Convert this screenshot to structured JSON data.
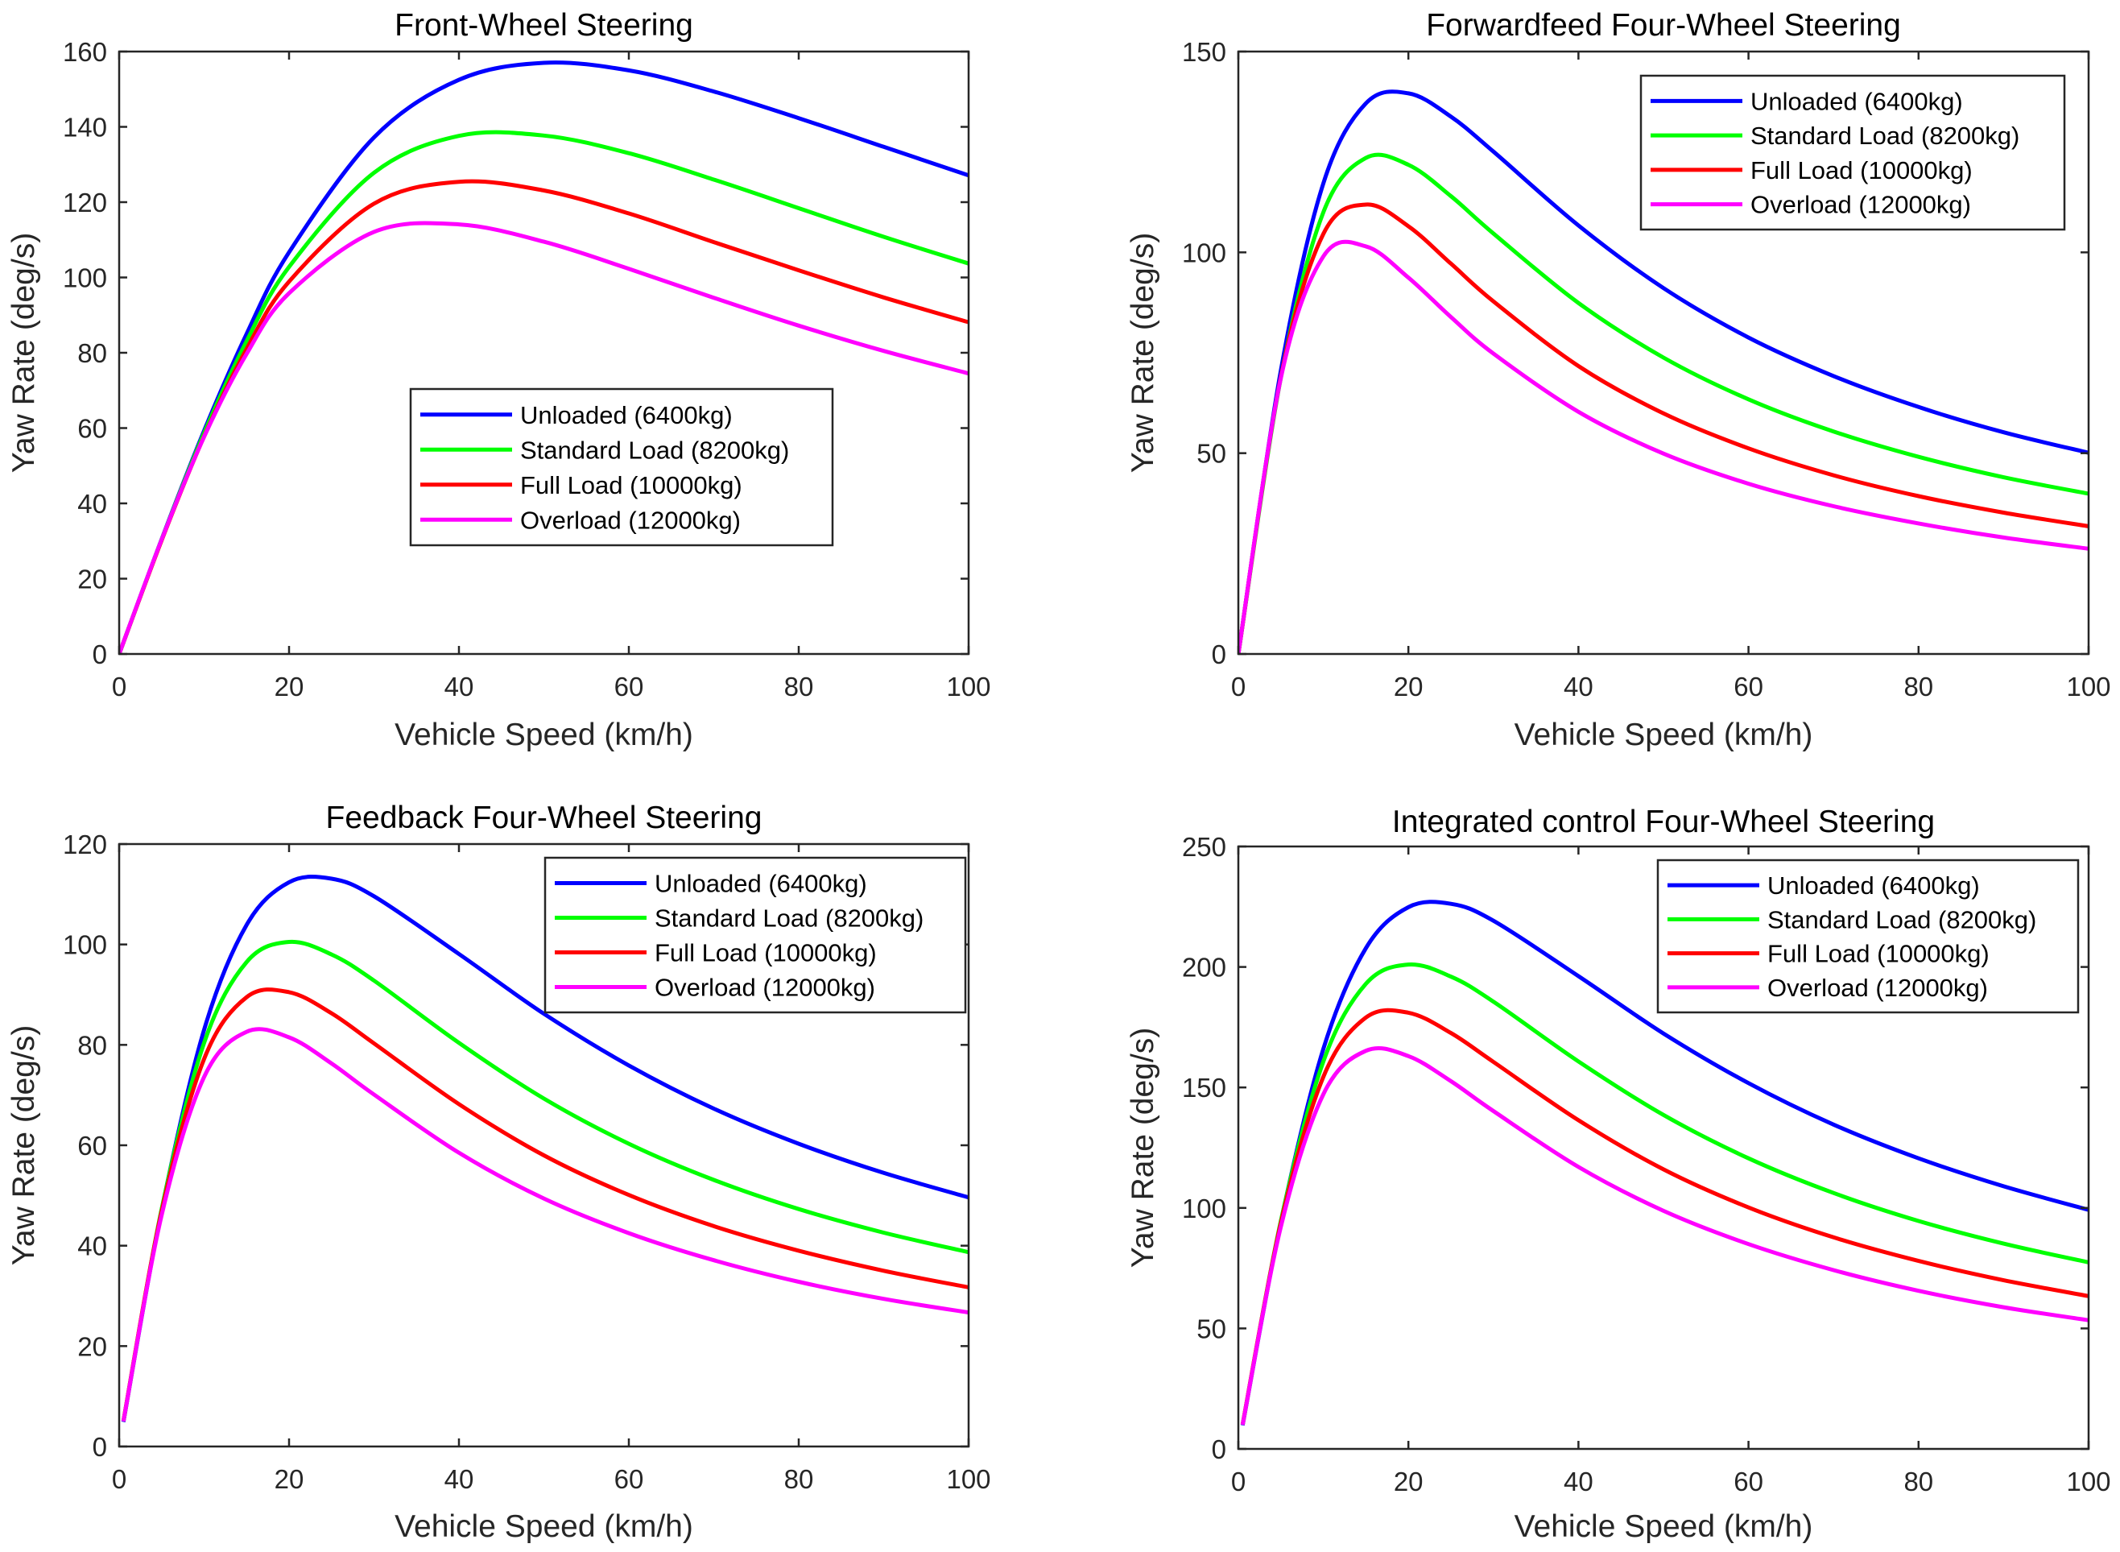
{
  "chart_data": [
    {
      "type": "line",
      "title": "Front-Wheel Steering",
      "xlabel": "Vehicle Speed (km/h)",
      "ylabel": "Yaw Rate (deg/s)",
      "xlim": [
        0,
        100
      ],
      "ylim": [
        0,
        160
      ],
      "xticks": [
        0,
        20,
        40,
        60,
        80,
        100
      ],
      "yticks": [
        0,
        20,
        40,
        60,
        80,
        100,
        120,
        140,
        160
      ],
      "grid": false,
      "legend_position": "center-right",
      "x": [
        0,
        5,
        10,
        15,
        20,
        30,
        40,
        50,
        60,
        70,
        80,
        90,
        100
      ],
      "series": [
        {
          "name": "Unloaded (6400kg)",
          "color": "#0000ff",
          "values": [
            0,
            30.5,
            59.3,
            85.0,
            106.7,
            137.2,
            152.5,
            157.0,
            155.0,
            149.4,
            142.3,
            134.7,
            127.1
          ]
        },
        {
          "name": "Standard Load (8200kg)",
          "color": "#00ff00",
          "values": [
            0,
            30.4,
            58.7,
            83.1,
            102.8,
            127.8,
            137.6,
            137.7,
            133.0,
            126.0,
            118.4,
            110.8,
            103.7
          ]
        },
        {
          "name": "Full Load (10000kg)",
          "color": "#ff0000",
          "values": [
            0,
            30.2,
            57.8,
            81.0,
            98.9,
            119.6,
            125.4,
            123.1,
            117.0,
            109.4,
            101.9,
            94.7,
            88.1
          ]
        },
        {
          "name": "Overload (12000kg)",
          "color": "#ff00ff",
          "values": [
            0,
            30.4,
            57.7,
            79.7,
            95.8,
            112.1,
            114.1,
            109.5,
            102.3,
            94.6,
            87.2,
            80.5,
            74.5
          ]
        }
      ]
    },
    {
      "type": "line",
      "title": "Forwardfeed Four-Wheel Steering",
      "xlabel": "Vehicle Speed (km/h)",
      "ylabel": "Yaw Rate (deg/s)",
      "xlim": [
        0,
        100
      ],
      "ylim": [
        0,
        150
      ],
      "xticks": [
        0,
        20,
        40,
        60,
        80,
        100
      ],
      "yticks": [
        0,
        50,
        100,
        150
      ],
      "grid": false,
      "legend_position": "top-right",
      "x": [
        0,
        5,
        10,
        15,
        20,
        25,
        30,
        40,
        50,
        60,
        70,
        80,
        90,
        100
      ],
      "series": [
        {
          "name": "Unloaded (6400kg)",
          "color": "#0000ff",
          "values": [
            0,
            70.6,
            117.2,
            137.1,
            139.6,
            133.8,
            125.1,
            106.7,
            91.1,
            78.8,
            69.2,
            61.5,
            55.2,
            50.1
          ]
        },
        {
          "name": "Standard Load (8200kg)",
          "color": "#00ff00",
          "values": [
            0,
            68.8,
            110.0,
            123.5,
            121.8,
            114.0,
            104.7,
            87.4,
            73.8,
            63.4,
            55.4,
            49.1,
            44.0,
            39.9
          ]
        },
        {
          "name": "Full Load (10000kg)",
          "color": "#ff0000",
          "values": [
            0,
            69.0,
            104.6,
            111.9,
            106.5,
            97.2,
            87.8,
            71.7,
            59.9,
            51.2,
            44.5,
            39.3,
            35.2,
            31.8
          ]
        },
        {
          "name": "Overload (12000kg)",
          "color": "#ff00ff",
          "values": [
            0,
            68.7,
            99.0,
            101.5,
            93.7,
            83.9,
            74.8,
            60.3,
            49.9,
            42.4,
            36.8,
            32.5,
            29.0,
            26.2
          ]
        }
      ]
    },
    {
      "type": "line",
      "title": "Feedback Four-Wheel Steering",
      "xlabel": "Vehicle Speed (km/h)",
      "ylabel": "Yaw Rate (deg/s)",
      "xlim": [
        0,
        100
      ],
      "ylim": [
        0,
        120
      ],
      "xticks": [
        0,
        20,
        40,
        60,
        80,
        100
      ],
      "yticks": [
        0,
        20,
        40,
        60,
        80,
        100,
        120
      ],
      "grid": false,
      "legend_position": "top-right",
      "x": [
        0.5,
        5,
        10,
        15,
        20,
        25,
        30,
        40,
        50,
        60,
        70,
        80,
        90,
        100
      ],
      "series": [
        {
          "name": "Unloaded (6400kg)",
          "color": "#0000ff",
          "values": [
            4.9,
            47.1,
            83.0,
            103.9,
            112.4,
            113.1,
            109.6,
            98.1,
            86.2,
            75.9,
            67.3,
            60.3,
            54.5,
            49.6
          ]
        },
        {
          "name": "Standard Load (8200kg)",
          "color": "#00ff00",
          "values": [
            5.0,
            47.3,
            80.4,
            96.5,
            100.5,
            98.0,
            92.8,
            80.4,
            69.3,
            60.3,
            53.1,
            47.3,
            42.6,
            38.7
          ]
        },
        {
          "name": "Full Load (10000kg)",
          "color": "#ff0000",
          "values": [
            5.1,
            46.9,
            77.2,
            89.5,
            90.5,
            86.3,
            80.3,
            68.2,
            58.0,
            50.1,
            43.9,
            39.0,
            35.0,
            31.7
          ]
        },
        {
          "name": "Overload (12000kg)",
          "color": "#ff00ff",
          "values": [
            5.0,
            46.1,
            73.6,
            82.6,
            81.5,
            76.3,
            70.1,
            58.5,
            49.4,
            42.5,
            37.1,
            32.8,
            29.4,
            26.7
          ]
        }
      ]
    },
    {
      "type": "line",
      "title": "Integrated control Four-Wheel Steering",
      "xlabel": "Vehicle Speed (km/h)",
      "ylabel": "Yaw Rate (deg/s)",
      "xlim": [
        0,
        100
      ],
      "ylim": [
        0,
        250
      ],
      "xticks": [
        0,
        20,
        40,
        60,
        80,
        100
      ],
      "yticks": [
        0,
        50,
        100,
        150,
        200,
        250
      ],
      "grid": false,
      "legend_position": "top-right",
      "x": [
        0.5,
        5,
        10,
        15,
        20,
        25,
        30,
        40,
        50,
        60,
        70,
        80,
        90,
        100
      ],
      "series": [
        {
          "name": "Unloaded (6400kg)",
          "color": "#0000ff",
          "values": [
            9.8,
            94.2,
            166.0,
            207.8,
            224.8,
            226.2,
            219.2,
            196.2,
            172.4,
            151.8,
            134.6,
            120.6,
            109.0,
            99.2
          ]
        },
        {
          "name": "Standard Load (8200kg)",
          "color": "#00ff00",
          "values": [
            10.0,
            94.6,
            160.8,
            193.0,
            201.0,
            196.0,
            185.6,
            160.8,
            138.6,
            120.6,
            106.2,
            94.6,
            85.2,
            77.4
          ]
        },
        {
          "name": "Full Load (10000kg)",
          "color": "#ff0000",
          "values": [
            10.2,
            93.8,
            154.4,
            179.0,
            181.0,
            172.6,
            160.6,
            136.4,
            116.0,
            100.2,
            87.8,
            78.0,
            70.0,
            63.4
          ]
        },
        {
          "name": "Overload (12000kg)",
          "color": "#ff00ff",
          "values": [
            10.0,
            92.2,
            147.2,
            165.2,
            163.0,
            152.6,
            140.2,
            117.0,
            98.8,
            85.0,
            74.2,
            65.6,
            58.8,
            53.4
          ]
        }
      ]
    }
  ]
}
